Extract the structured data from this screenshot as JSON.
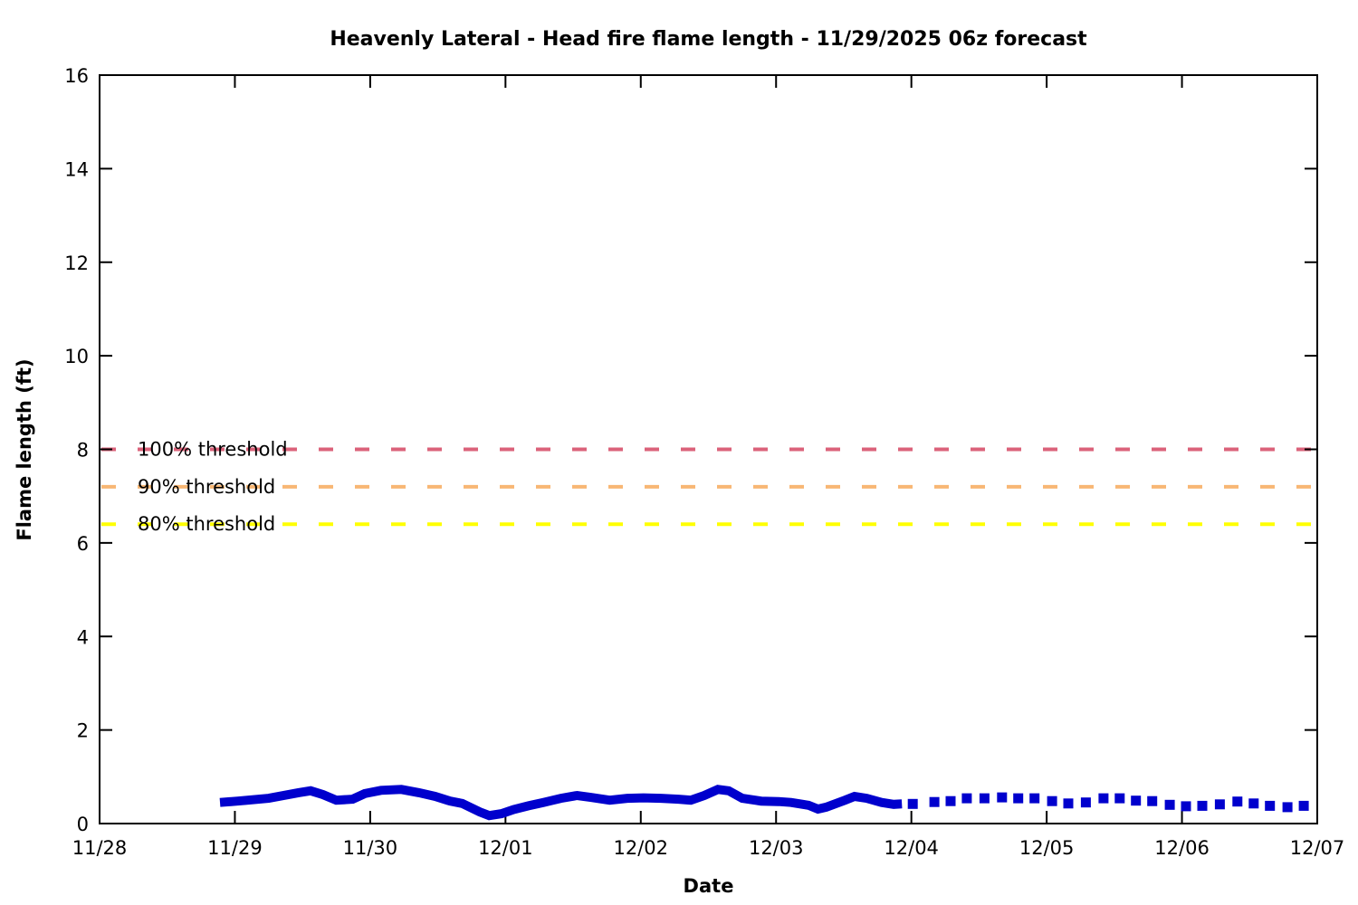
{
  "chart_data": {
    "type": "line",
    "title": "Heavenly Lateral - Head fire flame length - 11/29/2025 06z forecast",
    "xlabel": "Date",
    "ylabel": "Flame length (ft)",
    "ylim": [
      0,
      16
    ],
    "yticks": [
      0,
      2,
      4,
      6,
      8,
      10,
      12,
      14,
      16
    ],
    "xlim": [
      0,
      9
    ],
    "x_unit": "days since 11/28",
    "x_ticks": {
      "positions": [
        0,
        1,
        2,
        3,
        4,
        5,
        6,
        7,
        8,
        9
      ],
      "labels": [
        "11/28",
        "11/29",
        "11/30",
        "12/01",
        "12/02",
        "12/03",
        "12/04",
        "12/05",
        "12/06",
        "12/07"
      ]
    },
    "grid": false,
    "legend_position": "none",
    "axis_color": "#000000",
    "thresholds": [
      {
        "label": "100% threshold",
        "value": 8.0,
        "color": "#db627a"
      },
      {
        "label": "90% threshold",
        "value": 7.2,
        "color": "#f8b774"
      },
      {
        "label": "80% threshold",
        "value": 6.4,
        "color": "#ffff00"
      }
    ],
    "series": [
      {
        "name": "flame-length-solid",
        "style": "solid",
        "color": "#0000cd",
        "line_width": 10,
        "points": [
          [
            0.89,
            0.45
          ],
          [
            1.02,
            0.48
          ],
          [
            1.25,
            0.54
          ],
          [
            1.47,
            0.66
          ],
          [
            1.56,
            0.7
          ],
          [
            1.65,
            0.62
          ],
          [
            1.75,
            0.5
          ],
          [
            1.87,
            0.52
          ],
          [
            1.96,
            0.64
          ],
          [
            2.08,
            0.71
          ],
          [
            2.23,
            0.73
          ],
          [
            2.36,
            0.66
          ],
          [
            2.48,
            0.58
          ],
          [
            2.59,
            0.48
          ],
          [
            2.68,
            0.43
          ],
          [
            2.81,
            0.25
          ],
          [
            2.88,
            0.17
          ],
          [
            2.97,
            0.21
          ],
          [
            3.06,
            0.3
          ],
          [
            3.17,
            0.38
          ],
          [
            3.28,
            0.45
          ],
          [
            3.41,
            0.54
          ],
          [
            3.53,
            0.6
          ],
          [
            3.63,
            0.56
          ],
          [
            3.77,
            0.5
          ],
          [
            3.9,
            0.54
          ],
          [
            4.02,
            0.55
          ],
          [
            4.15,
            0.54
          ],
          [
            4.28,
            0.52
          ],
          [
            4.37,
            0.5
          ],
          [
            4.47,
            0.6
          ],
          [
            4.57,
            0.73
          ],
          [
            4.65,
            0.7
          ],
          [
            4.75,
            0.54
          ],
          [
            4.89,
            0.48
          ],
          [
            5.02,
            0.47
          ],
          [
            5.11,
            0.45
          ],
          [
            5.24,
            0.39
          ],
          [
            5.31,
            0.31
          ],
          [
            5.37,
            0.35
          ],
          [
            5.51,
            0.5
          ],
          [
            5.58,
            0.58
          ],
          [
            5.67,
            0.54
          ],
          [
            5.78,
            0.45
          ],
          [
            5.87,
            0.41
          ],
          [
            5.93,
            0.42
          ]
        ]
      },
      {
        "name": "flame-length-dotted",
        "style": "dotted",
        "color": "#0000cd",
        "dot_size": 11,
        "points": [
          [
            6.01,
            0.42
          ],
          [
            6.17,
            0.46
          ],
          [
            6.29,
            0.48
          ],
          [
            6.41,
            0.54
          ],
          [
            6.54,
            0.54
          ],
          [
            6.67,
            0.56
          ],
          [
            6.79,
            0.54
          ],
          [
            6.91,
            0.54
          ],
          [
            7.04,
            0.48
          ],
          [
            7.16,
            0.43
          ],
          [
            7.29,
            0.45
          ],
          [
            7.42,
            0.54
          ],
          [
            7.54,
            0.54
          ],
          [
            7.66,
            0.49
          ],
          [
            7.78,
            0.48
          ],
          [
            7.91,
            0.4
          ],
          [
            8.03,
            0.37
          ],
          [
            8.15,
            0.38
          ],
          [
            8.28,
            0.41
          ],
          [
            8.41,
            0.47
          ],
          [
            8.53,
            0.43
          ],
          [
            8.65,
            0.38
          ],
          [
            8.78,
            0.35
          ],
          [
            8.9,
            0.38
          ]
        ]
      }
    ]
  }
}
